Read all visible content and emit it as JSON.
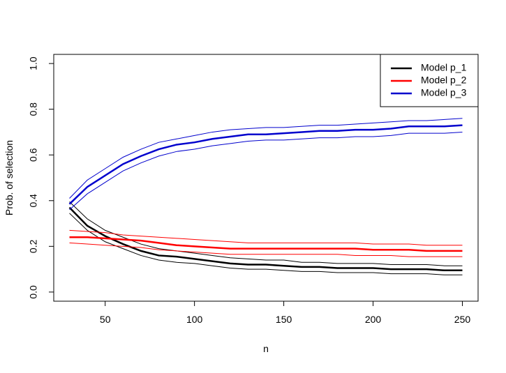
{
  "chart_data": {
    "type": "line",
    "xlabel": "n",
    "ylabel": "Prob. of selection",
    "x": [
      30,
      40,
      50,
      60,
      70,
      80,
      90,
      100,
      110,
      120,
      130,
      140,
      150,
      160,
      170,
      180,
      190,
      200,
      210,
      220,
      230,
      240,
      250
    ],
    "series": [
      {
        "name": "Model p_1",
        "color": "#000000",
        "values": [
          0.37,
          0.29,
          0.245,
          0.21,
          0.18,
          0.16,
          0.155,
          0.145,
          0.135,
          0.125,
          0.12,
          0.12,
          0.115,
          0.11,
          0.11,
          0.105,
          0.105,
          0.105,
          0.1,
          0.1,
          0.1,
          0.095,
          0.095
        ],
        "upper": [
          0.395,
          0.32,
          0.27,
          0.24,
          0.21,
          0.19,
          0.18,
          0.17,
          0.16,
          0.15,
          0.145,
          0.14,
          0.14,
          0.13,
          0.13,
          0.125,
          0.125,
          0.125,
          0.12,
          0.12,
          0.12,
          0.115,
          0.115
        ],
        "lower": [
          0.345,
          0.27,
          0.22,
          0.19,
          0.16,
          0.14,
          0.13,
          0.125,
          0.115,
          0.105,
          0.1,
          0.1,
          0.095,
          0.09,
          0.09,
          0.085,
          0.085,
          0.085,
          0.08,
          0.08,
          0.08,
          0.075,
          0.075
        ]
      },
      {
        "name": "Model p_2",
        "color": "#ff0000",
        "values": [
          0.24,
          0.24,
          0.235,
          0.23,
          0.225,
          0.215,
          0.205,
          0.2,
          0.195,
          0.19,
          0.19,
          0.19,
          0.19,
          0.19,
          0.19,
          0.19,
          0.19,
          0.185,
          0.185,
          0.185,
          0.18,
          0.18,
          0.18
        ],
        "upper": [
          0.27,
          0.265,
          0.26,
          0.25,
          0.245,
          0.24,
          0.235,
          0.23,
          0.225,
          0.22,
          0.215,
          0.215,
          0.215,
          0.215,
          0.215,
          0.215,
          0.215,
          0.21,
          0.21,
          0.21,
          0.205,
          0.205,
          0.205
        ],
        "lower": [
          0.215,
          0.21,
          0.205,
          0.2,
          0.195,
          0.185,
          0.18,
          0.175,
          0.17,
          0.165,
          0.165,
          0.165,
          0.165,
          0.165,
          0.165,
          0.165,
          0.16,
          0.16,
          0.16,
          0.155,
          0.155,
          0.155,
          0.155
        ]
      },
      {
        "name": "Model p_3",
        "color": "#0000cd",
        "values": [
          0.385,
          0.46,
          0.51,
          0.56,
          0.595,
          0.625,
          0.645,
          0.655,
          0.67,
          0.68,
          0.69,
          0.69,
          0.695,
          0.7,
          0.705,
          0.705,
          0.71,
          0.71,
          0.715,
          0.725,
          0.725,
          0.725,
          0.73
        ],
        "upper": [
          0.41,
          0.49,
          0.54,
          0.59,
          0.625,
          0.655,
          0.67,
          0.685,
          0.7,
          0.71,
          0.715,
          0.72,
          0.72,
          0.725,
          0.73,
          0.73,
          0.735,
          0.74,
          0.745,
          0.75,
          0.75,
          0.755,
          0.76
        ],
        "lower": [
          0.36,
          0.43,
          0.48,
          0.53,
          0.565,
          0.595,
          0.615,
          0.625,
          0.64,
          0.65,
          0.66,
          0.665,
          0.665,
          0.67,
          0.675,
          0.675,
          0.68,
          0.68,
          0.685,
          0.695,
          0.695,
          0.695,
          0.7
        ]
      }
    ],
    "xlim": [
      21.2,
      258.8
    ],
    "xticks": [
      50,
      100,
      150,
      200,
      250
    ],
    "ylim": [
      -0.04,
      1.04
    ],
    "yticks": [
      {
        "value": 0,
        "label": "0.0"
      },
      0.2,
      0.4,
      0.6,
      0.8,
      {
        "value": 1,
        "label": "1.0"
      }
    ],
    "legend": "topright",
    "grid": false
  }
}
